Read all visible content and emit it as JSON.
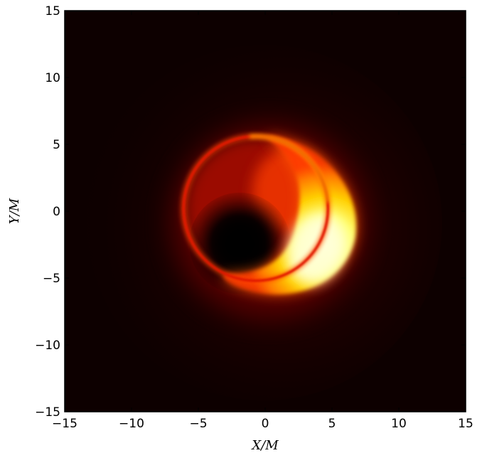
{
  "chart_data": {
    "type": "heatmap",
    "title": "",
    "xlabel": "X/M",
    "ylabel": "Y/M",
    "xlim": [
      -15,
      15
    ],
    "ylim": [
      -15,
      15
    ],
    "x_ticks": [
      -15,
      -10,
      -5,
      0,
      5,
      10,
      15
    ],
    "y_ticks": [
      -15,
      -10,
      -5,
      0,
      5,
      10,
      15
    ],
    "x_tick_labels": [
      "−15",
      "−10",
      "−5",
      "0",
      "5",
      "10",
      "15"
    ],
    "y_tick_labels": [
      "−15",
      "−10",
      "−5",
      "0",
      "5",
      "10",
      "15"
    ],
    "colormap": "hot",
    "grid": false,
    "colors": {
      "background": "#0d0000",
      "ring": "#e01600",
      "core": "#ffffd8",
      "shadow": "#000000"
    },
    "features": {
      "photon_ring": {
        "center_x": -0.7,
        "center_y": 0.2,
        "radius": 5.4
      },
      "shadow": {
        "center_x": -1.9,
        "center_y": -2.4,
        "radius": 2.2
      },
      "bright_crescent": {
        "center_x": 3.8,
        "center_y": -2.8
      }
    }
  }
}
